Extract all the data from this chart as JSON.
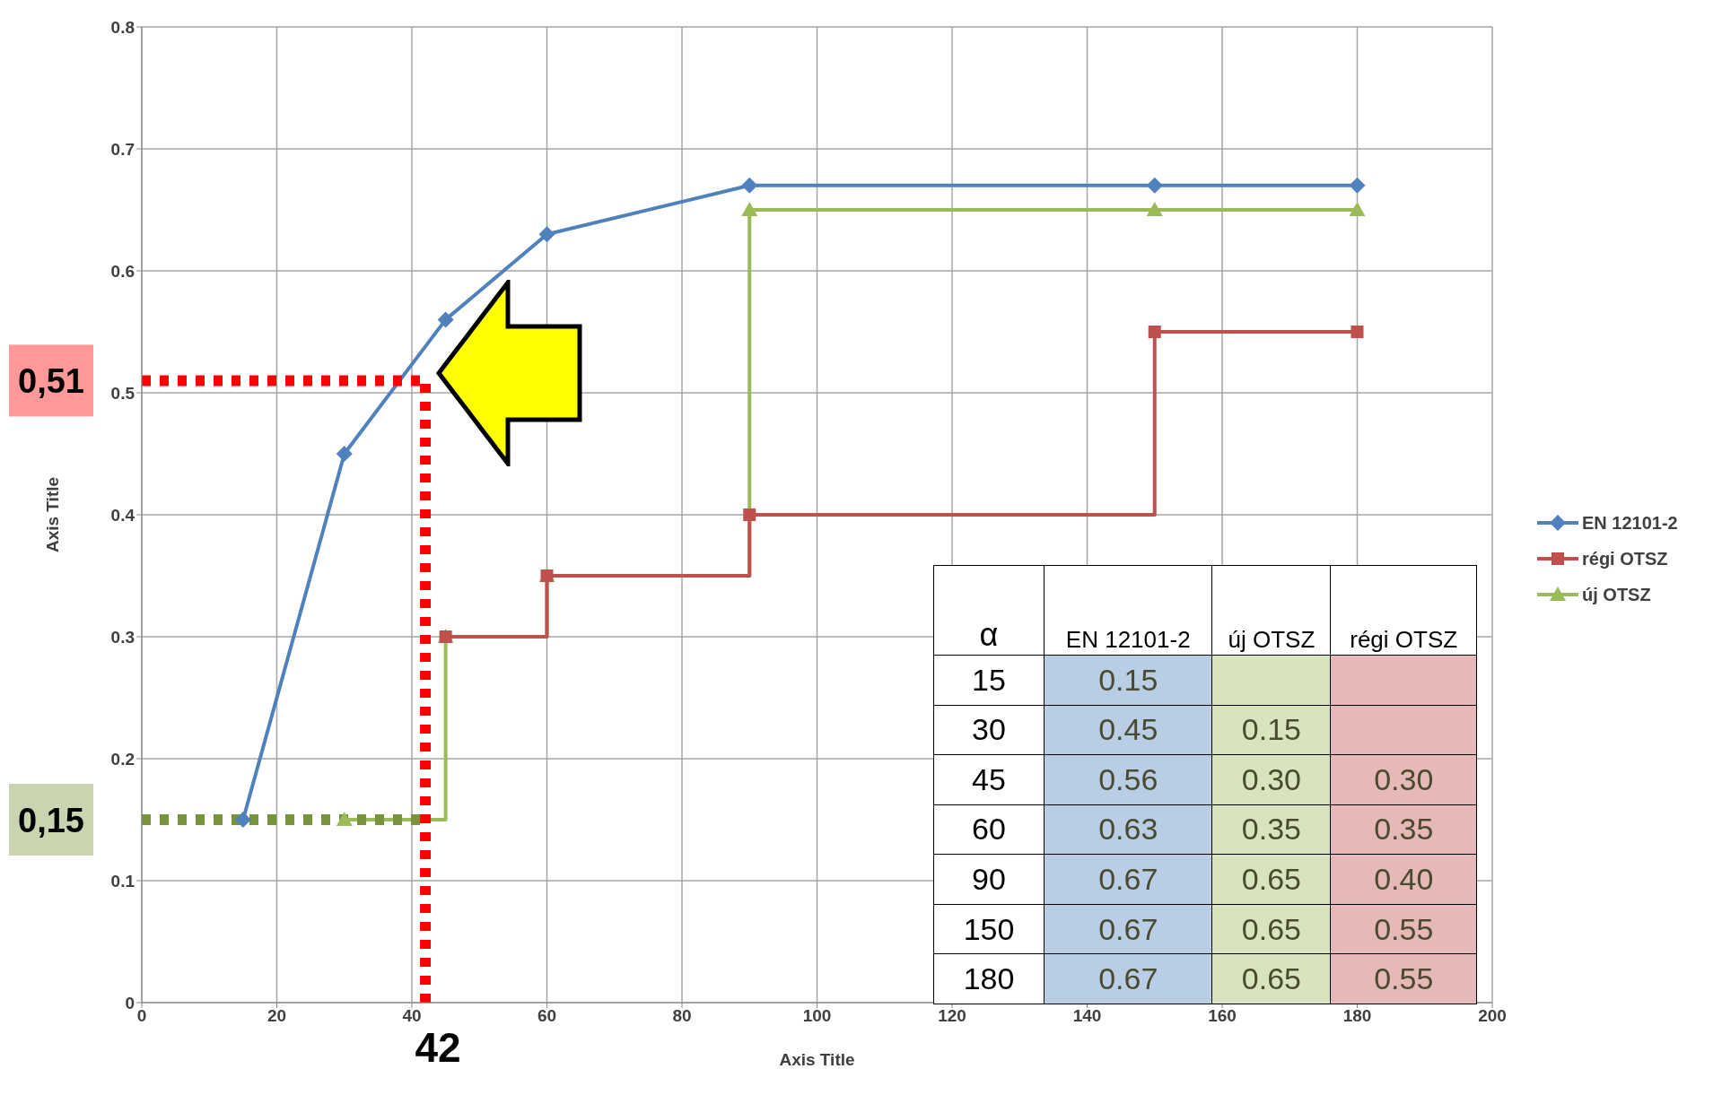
{
  "chart_data": [
    {
      "type": "line",
      "xlabel": "Axis Title",
      "ylabel": "Axis Title",
      "xlim": [
        0,
        200
      ],
      "xticks": [
        0,
        20,
        40,
        60,
        80,
        100,
        120,
        140,
        160,
        180,
        200
      ],
      "ylim": [
        0,
        0.8
      ],
      "yticks": [
        0,
        0.1,
        0.2,
        0.3,
        0.4,
        0.5,
        0.6,
        0.7,
        0.8
      ],
      "grid": true,
      "legend": "right",
      "series": [
        {
          "name": "EN 12101-2",
          "type": "line",
          "marker": "diamond",
          "color": "#4f81bd",
          "x": [
            15,
            30,
            45,
            60,
            90,
            150,
            180
          ],
          "values": [
            0.15,
            0.45,
            0.56,
            0.63,
            0.67,
            0.67,
            0.67
          ]
        },
        {
          "name": "régi OTSZ",
          "type": "step",
          "marker": "square",
          "color": "#c0504d",
          "x": [
            45,
            60,
            90,
            150,
            180
          ],
          "values": [
            0.3,
            0.35,
            0.4,
            0.55,
            0.55
          ]
        },
        {
          "name": "új OTSZ",
          "type": "step",
          "marker": "triangle",
          "color": "#9bbb59",
          "x": [
            30,
            45,
            60,
            90,
            150,
            180
          ],
          "values": [
            0.15,
            0.3,
            0.35,
            0.65,
            0.65,
            0.65
          ]
        }
      ],
      "ref_lines": [
        {
          "axis": "y",
          "value": 0.51,
          "label": "0,51",
          "color": "#ff0000",
          "line_style": "dotted"
        },
        {
          "axis": "y",
          "value": 0.15,
          "label": "0,15",
          "color": "#77933c",
          "line_style": "dotted"
        },
        {
          "axis": "x",
          "value": 42,
          "label": "42",
          "color": "#ff0000",
          "line_style": "dotted"
        }
      ]
    },
    {
      "type": "heatmap",
      "ylabel": "α",
      "categories": [
        "EN 12101-2",
        "új OTSZ",
        "régi OTSZ"
      ],
      "y_categories": [
        "15",
        "30",
        "45",
        "60",
        "90",
        "150",
        "180"
      ],
      "colors": [
        "#b9cde5",
        "#d7e4bd",
        "#e6b9b8"
      ],
      "data_labels": true,
      "cells": [
        [
          0.15,
          null,
          null
        ],
        [
          0.45,
          0.15,
          null
        ],
        [
          0.56,
          0.3,
          0.3
        ],
        [
          0.63,
          0.35,
          0.35
        ],
        [
          0.67,
          0.65,
          0.4
        ],
        [
          0.67,
          0.65,
          0.55
        ],
        [
          0.67,
          0.65,
          0.55
        ]
      ],
      "cell_labels": [
        [
          "0.15",
          null,
          null
        ],
        [
          "0.45",
          "0.15",
          null
        ],
        [
          "0.56",
          "0.30",
          "0.30"
        ],
        [
          "0.63",
          "0.35",
          "0.35"
        ],
        [
          "0.67",
          "0.65",
          "0.40"
        ],
        [
          "0.67",
          "0.65",
          "0.55"
        ],
        [
          "0.67",
          "0.65",
          "0.55"
        ]
      ]
    }
  ]
}
